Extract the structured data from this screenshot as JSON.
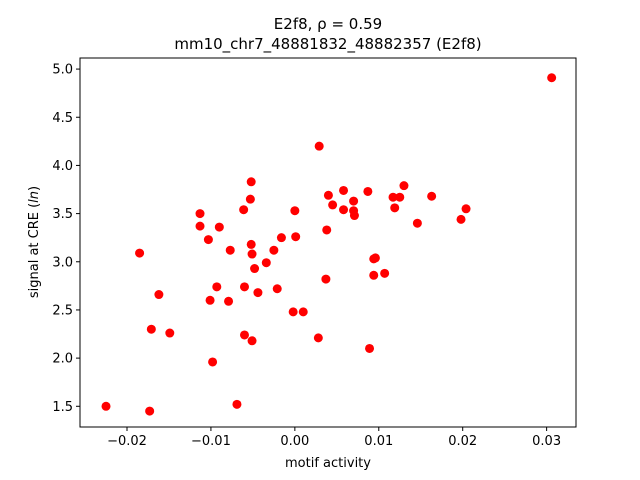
{
  "chart_data": {
    "type": "scatter",
    "title_line1": "E2f8, ρ = 0.59",
    "title_line2": "mm10_chr7_48881832_48882357 (E2f8)",
    "xlabel": "motif activity",
    "ylabel_prefix": "signal at CRE (",
    "ylabel_italic": "ln",
    "ylabel_suffix": ")",
    "xlim": [
      -0.0256,
      0.0335
    ],
    "ylim": [
      1.285,
      5.115
    ],
    "xticks": [
      -0.02,
      -0.01,
      0.0,
      0.01,
      0.02,
      0.03
    ],
    "xtick_labels": [
      "−0.02",
      "−0.01",
      "0.00",
      "0.01",
      "0.02",
      "0.03"
    ],
    "yticks": [
      1.5,
      2.0,
      2.5,
      3.0,
      3.5,
      4.0,
      4.5,
      5.0
    ],
    "ytick_labels": [
      "1.5",
      "2.0",
      "2.5",
      "3.0",
      "3.5",
      "4.0",
      "4.5",
      "5.0"
    ],
    "grid": false,
    "marker_color": "#ff0000",
    "points": [
      {
        "x": -0.0225,
        "y": 1.5
      },
      {
        "x": -0.0173,
        "y": 1.45
      },
      {
        "x": -0.0069,
        "y": 1.52
      },
      {
        "x": -0.0098,
        "y": 1.96
      },
      {
        "x": 0.0089,
        "y": 2.1
      },
      {
        "x": -0.0051,
        "y": 2.18
      },
      {
        "x": -0.006,
        "y": 2.24
      },
      {
        "x": 0.0028,
        "y": 2.21
      },
      {
        "x": -0.0149,
        "y": 2.26
      },
      {
        "x": -0.0171,
        "y": 2.3
      },
      {
        "x": -0.0079,
        "y": 2.59
      },
      {
        "x": -0.0101,
        "y": 2.6
      },
      {
        "x": -0.0162,
        "y": 2.66
      },
      {
        "x": -0.0044,
        "y": 2.68
      },
      {
        "x": -0.0021,
        "y": 2.72
      },
      {
        "x": -0.0093,
        "y": 2.74
      },
      {
        "x": -0.006,
        "y": 2.74
      },
      {
        "x": -0.0002,
        "y": 2.48
      },
      {
        "x": 0.001,
        "y": 2.48
      },
      {
        "x": 0.0037,
        "y": 2.82
      },
      {
        "x": 0.0107,
        "y": 2.88
      },
      {
        "x": 0.0094,
        "y": 2.86
      },
      {
        "x": 0.0096,
        "y": 3.04
      },
      {
        "x": 0.0094,
        "y": 3.03
      },
      {
        "x": -0.0185,
        "y": 3.09
      },
      {
        "x": -0.0048,
        "y": 2.93
      },
      {
        "x": -0.0034,
        "y": 2.99
      },
      {
        "x": -0.0051,
        "y": 3.08
      },
      {
        "x": -0.0077,
        "y": 3.12
      },
      {
        "x": -0.0025,
        "y": 3.12
      },
      {
        "x": -0.0052,
        "y": 3.18
      },
      {
        "x": -0.0103,
        "y": 3.23
      },
      {
        "x": -0.0016,
        "y": 3.25
      },
      {
        "x": 0.0001,
        "y": 3.26
      },
      {
        "x": 0.0038,
        "y": 3.33
      },
      {
        "x": -0.0113,
        "y": 3.37
      },
      {
        "x": -0.009,
        "y": 3.36
      },
      {
        "x": -0.0113,
        "y": 3.5
      },
      {
        "x": -0.0061,
        "y": 3.54
      },
      {
        "x": 0.0,
        "y": 3.53
      },
      {
        "x": 0.0058,
        "y": 3.54
      },
      {
        "x": 0.007,
        "y": 3.53
      },
      {
        "x": 0.0071,
        "y": 3.48
      },
      {
        "x": 0.0146,
        "y": 3.4
      },
      {
        "x": 0.0198,
        "y": 3.44
      },
      {
        "x": 0.0204,
        "y": 3.55
      },
      {
        "x": 0.0119,
        "y": 3.56
      },
      {
        "x": 0.0045,
        "y": 3.59
      },
      {
        "x": 0.007,
        "y": 3.63
      },
      {
        "x": -0.0053,
        "y": 3.65
      },
      {
        "x": 0.004,
        "y": 3.69
      },
      {
        "x": 0.0117,
        "y": 3.67
      },
      {
        "x": 0.0125,
        "y": 3.67
      },
      {
        "x": 0.0163,
        "y": 3.68
      },
      {
        "x": 0.0058,
        "y": 3.74
      },
      {
        "x": 0.0087,
        "y": 3.73
      },
      {
        "x": 0.013,
        "y": 3.79
      },
      {
        "x": -0.0052,
        "y": 3.83
      },
      {
        "x": 0.0029,
        "y": 4.2
      },
      {
        "x": 0.0306,
        "y": 4.91
      }
    ]
  }
}
